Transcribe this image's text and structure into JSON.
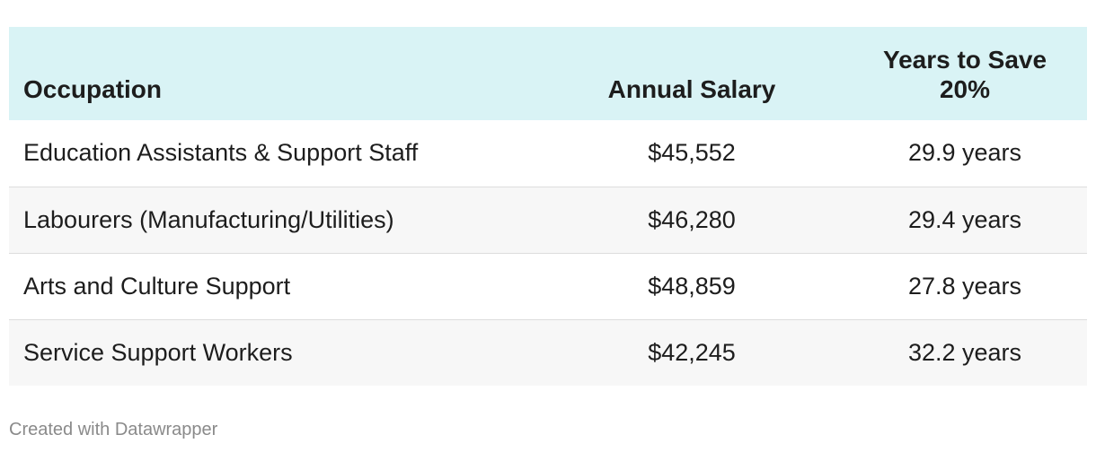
{
  "chart_data": {
    "type": "table",
    "columns": [
      "Occupation",
      "Annual Salary",
      "Years to Save 20%"
    ],
    "header": {
      "occupation": "Occupation",
      "salary": "Annual Salary",
      "years_line1": "Years to Save",
      "years_line2": "20%"
    },
    "rows": [
      {
        "occupation": "Education Assistants & Support Staff",
        "salary": "$45,552",
        "years": "29.9 years"
      },
      {
        "occupation": "Labourers (Manufacturing/Utilities)",
        "salary": "$46,280",
        "years": "29.4 years"
      },
      {
        "occupation": "Arts and Culture Support",
        "salary": "$48,859",
        "years": "27.8 years"
      },
      {
        "occupation": "Service Support Workers",
        "salary": "$42,245",
        "years": "32.2 years"
      }
    ]
  },
  "footer": {
    "credit": "Created with Datawrapper"
  },
  "colors": {
    "header_bg": "#d9f3f5",
    "row_alt_bg": "#f7f7f7",
    "text": "#1d1d1d",
    "credit_text": "#8a8a8a"
  }
}
